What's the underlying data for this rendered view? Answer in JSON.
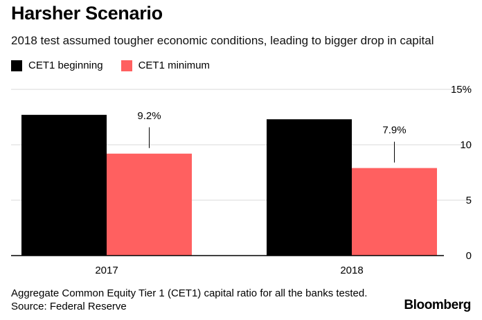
{
  "header": {
    "title": "Harsher Scenario",
    "subtitle": "2018 test assumed tougher economic conditions, leading to bigger drop in capital"
  },
  "legend": [
    {
      "label": "CET1 beginning",
      "color": "#000000"
    },
    {
      "label": "CET1 minimum",
      "color": "#ff6060"
    }
  ],
  "chart_data": {
    "type": "bar",
    "categories": [
      "2017",
      "2018"
    ],
    "series": [
      {
        "name": "CET1 beginning",
        "color": "#000000",
        "values": [
          12.7,
          12.3
        ]
      },
      {
        "name": "CET1 minimum",
        "color": "#ff6060",
        "values": [
          9.2,
          7.9
        ]
      }
    ],
    "data_labels": [
      {
        "category": "2017",
        "series": "CET1 minimum",
        "text": "9.2%"
      },
      {
        "category": "2018",
        "series": "CET1 minimum",
        "text": "7.9%"
      }
    ],
    "y_ticks": [
      {
        "value": 0,
        "label": "0"
      },
      {
        "value": 5,
        "label": "5"
      },
      {
        "value": 10,
        "label": "10"
      },
      {
        "value": 15,
        "label": "15%"
      }
    ],
    "ylim": [
      0,
      15
    ],
    "grid": true,
    "axis_position": "right",
    "legend_position": "top-left"
  },
  "footer": {
    "note": "Aggregate Common Equity Tier 1 (CET1) capital ratio for all the banks tested.",
    "source": "Source: Federal Reserve",
    "brand": "Bloomberg"
  }
}
